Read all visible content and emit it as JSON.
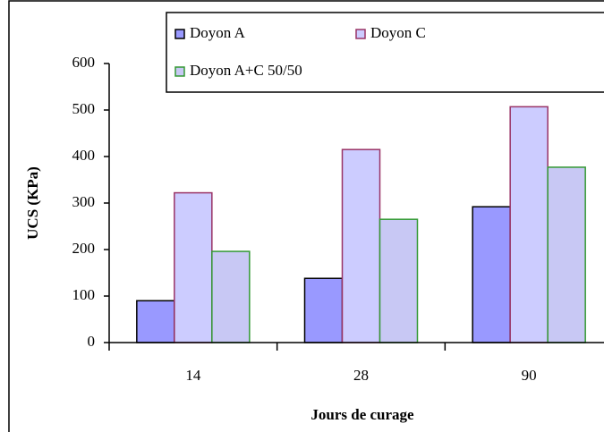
{
  "chart_data": {
    "type": "bar",
    "x_label": "Jours de curage",
    "y_label": "UCS (KPa)",
    "categories": [
      "14",
      "28",
      "90"
    ],
    "series": [
      {
        "name": "Doyon A",
        "color": "#9999ff",
        "stroke": "#000000",
        "values": [
          90,
          138,
          292
        ]
      },
      {
        "name": "Doyon C",
        "color": "#ccccff",
        "stroke": "#993366",
        "values": [
          322,
          415,
          507
        ]
      },
      {
        "name": "Doyon A+C 50/50",
        "color": "#c8c8f4",
        "stroke": "#339933",
        "values": [
          196,
          265,
          377
        ]
      }
    ],
    "ylim": [
      0,
      600
    ],
    "yticks": [
      0,
      100,
      200,
      300,
      400,
      500,
      600
    ]
  }
}
